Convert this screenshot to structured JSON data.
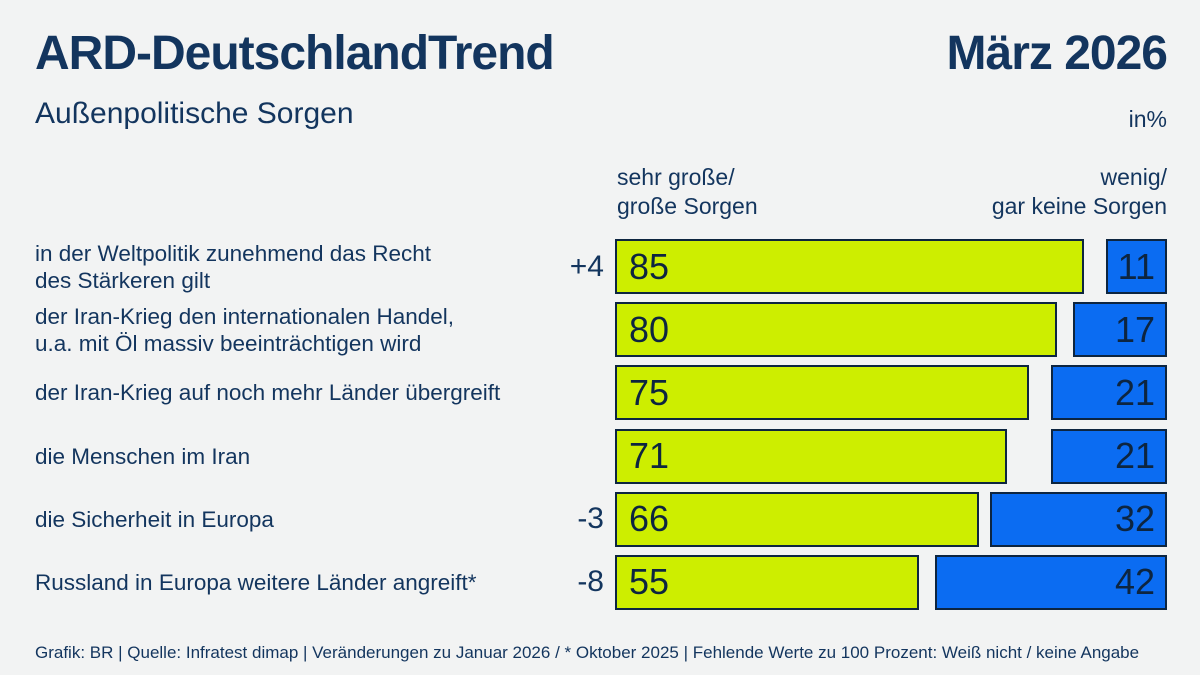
{
  "header": {
    "title": "ARD-DeutschlandTrend",
    "date": "März 2026",
    "subtitle": "Außenpolitische Sorgen",
    "unit_label": "in%"
  },
  "legend": {
    "left": "sehr große/\ngroße Sorgen",
    "right": "wenig/\ngar keine Sorgen"
  },
  "chart_data": {
    "type": "bar",
    "orientation": "horizontal",
    "unit": "percent",
    "xlim": [
      0,
      100
    ],
    "title": "Außenpolitische Sorgen",
    "categories": [
      "in der Weltpolitik zunehmend das Recht\ndes Stärkeren gilt",
      "der Iran-Krieg den internationalen Handel,\nu.a. mit Öl massiv beeinträchtigen wird",
      "der Iran-Krieg auf noch mehr Länder übergreift",
      "die Menschen im Iran",
      "die Sicherheit in Europa",
      "Russland in Europa weitere Länder angreift*"
    ],
    "series": [
      {
        "name": "sehr große/große Sorgen",
        "color": "#cdee00",
        "values": [
          85,
          80,
          75,
          71,
          66,
          55
        ]
      },
      {
        "name": "wenig/gar keine Sorgen",
        "color": "#0b6cf2",
        "values": [
          11,
          17,
          21,
          21,
          32,
          42
        ]
      }
    ],
    "changes": [
      "+4",
      "",
      "",
      "",
      "-3",
      "-8"
    ]
  },
  "footer": {
    "text": "Grafik: BR | Quelle: Infratest dimap | Veränderungen zu Januar 2026 / * Oktober 2025 | Fehlende Werte zu 100 Prozent: Weiß nicht / keine Angabe"
  },
  "colors": {
    "background": "#f2f3f3",
    "navy_text": "#13355e",
    "bar_border_ink": "#0d2540",
    "worry_green": "#cdee00",
    "no_worry_blue": "#0b6cf2"
  }
}
